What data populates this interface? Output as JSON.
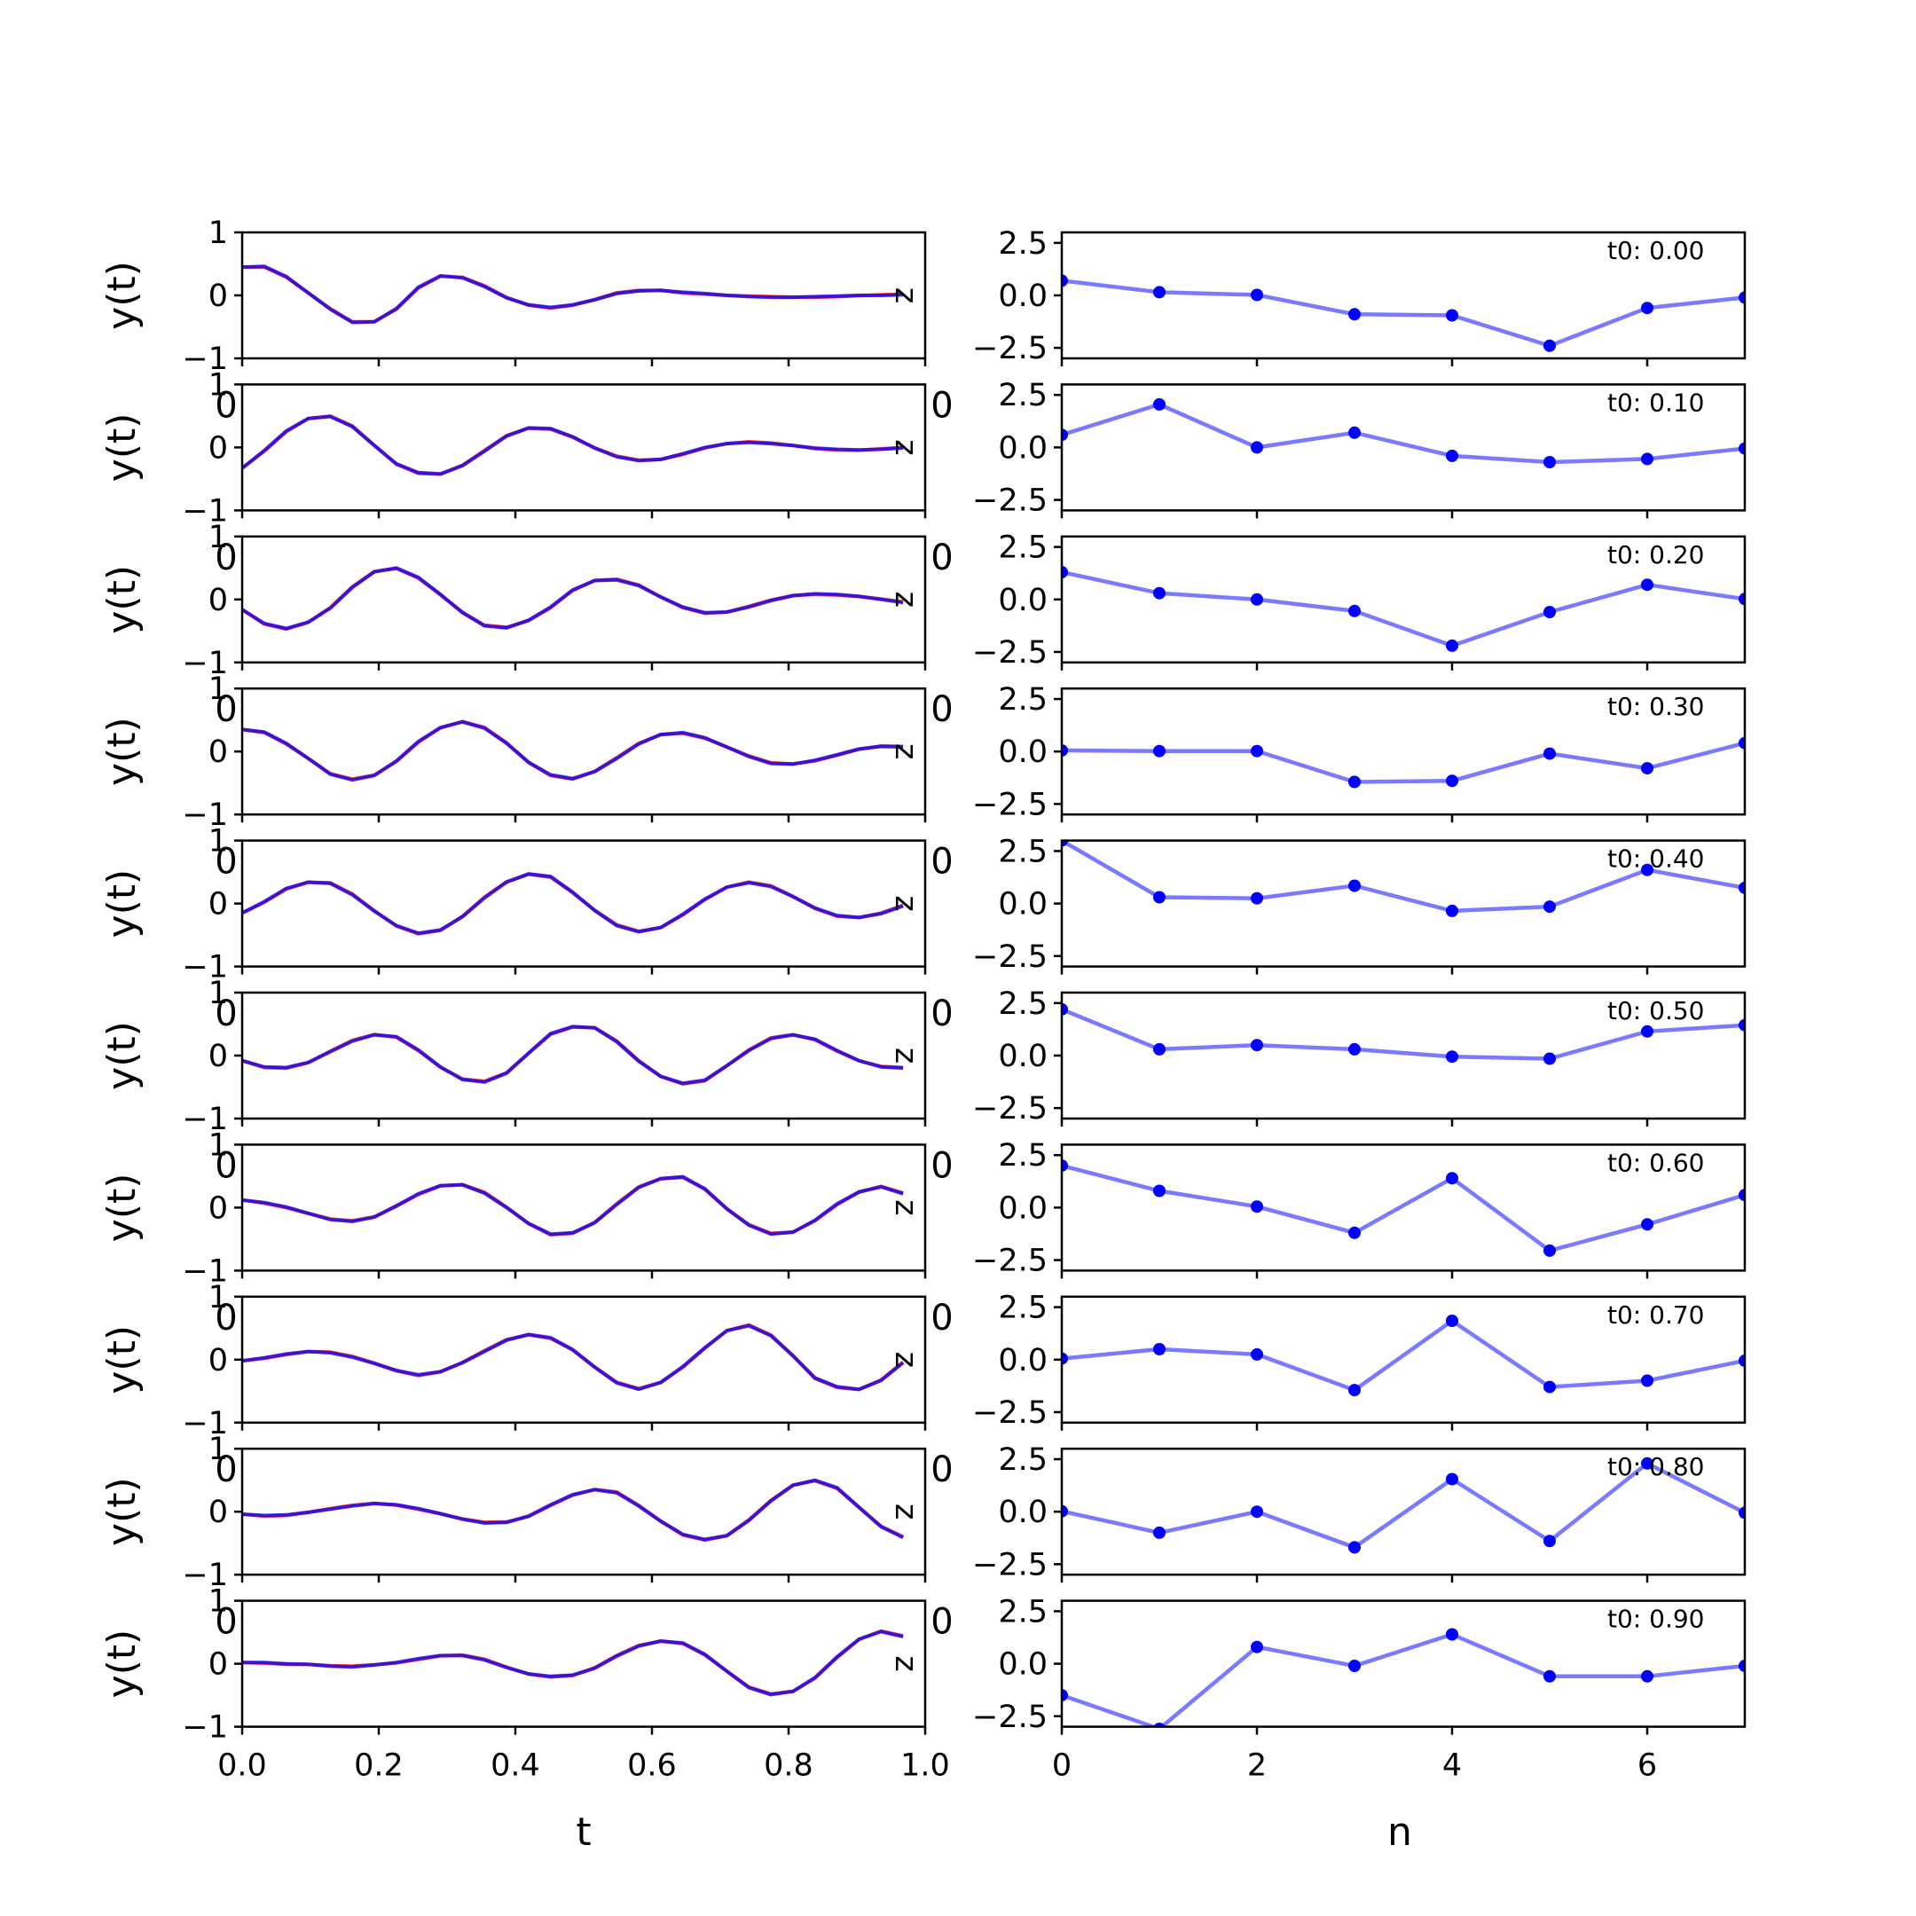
{
  "chart_data": [
    {
      "type": "line",
      "panel": "left",
      "xlabel": "t",
      "ylabel": "y(t)",
      "xlim": [
        0.0,
        1.0
      ],
      "ylim": [
        -1,
        1
      ],
      "yticks": [
        -1,
        0,
        1
      ],
      "xticks": [
        0.0,
        0.2,
        0.4,
        0.6,
        0.8,
        1.0
      ],
      "xtick_labels": [
        "0.0",
        "0.2",
        "0.4",
        "0.6",
        "0.8",
        "1.0"
      ],
      "right_axis_marker": "z",
      "stray_label": "0",
      "colors": {
        "red": "#ff0000",
        "blue": "#0000ff"
      },
      "x": [
        0.0,
        0.0323,
        0.0645,
        0.0968,
        0.129,
        0.1613,
        0.1935,
        0.2258,
        0.2581,
        0.2903,
        0.3226,
        0.3548,
        0.3871,
        0.4194,
        0.4516,
        0.4839,
        0.5161,
        0.5484,
        0.5806,
        0.6129,
        0.6452,
        0.6774,
        0.7097,
        0.7419,
        0.7742,
        0.8065,
        0.8387,
        0.871,
        0.9032,
        0.9355,
        0.9677
      ],
      "rows": [
        {
          "values": [
            0.45,
            0.46,
            0.3,
            0.04,
            -0.22,
            -0.43,
            -0.42,
            -0.21,
            0.13,
            0.31,
            0.28,
            0.14,
            -0.04,
            -0.15,
            -0.19,
            -0.15,
            -0.07,
            0.03,
            0.07,
            0.08,
            0.05,
            0.03,
            0.0,
            -0.02,
            -0.03,
            -0.03,
            -0.02,
            -0.01,
            0.0,
            0.0,
            0.01
          ]
        },
        {
          "values": [
            -0.33,
            -0.05,
            0.26,
            0.46,
            0.49,
            0.33,
            0.03,
            -0.26,
            -0.4,
            -0.42,
            -0.29,
            -0.06,
            0.18,
            0.31,
            0.3,
            0.17,
            -0.01,
            -0.15,
            -0.21,
            -0.19,
            -0.1,
            0.0,
            0.06,
            0.08,
            0.06,
            0.03,
            -0.01,
            -0.03,
            -0.04,
            -0.03,
            -0.01
          ]
        },
        {
          "values": [
            -0.16,
            -0.38,
            -0.46,
            -0.36,
            -0.14,
            0.19,
            0.44,
            0.5,
            0.35,
            0.08,
            -0.21,
            -0.42,
            -0.45,
            -0.33,
            -0.12,
            0.15,
            0.3,
            0.31,
            0.22,
            0.04,
            -0.12,
            -0.21,
            -0.2,
            -0.12,
            -0.02,
            0.06,
            0.09,
            0.08,
            0.05,
            0.0,
            -0.05
          ]
        },
        {
          "values": [
            0.35,
            0.31,
            0.13,
            -0.11,
            -0.36,
            -0.45,
            -0.38,
            -0.15,
            0.16,
            0.38,
            0.47,
            0.37,
            0.13,
            -0.17,
            -0.37,
            -0.43,
            -0.32,
            -0.11,
            0.12,
            0.27,
            0.3,
            0.22,
            0.07,
            -0.08,
            -0.19,
            -0.2,
            -0.14,
            -0.05,
            0.04,
            0.08,
            0.07
          ]
        },
        {
          "values": [
            -0.15,
            0.03,
            0.24,
            0.34,
            0.32,
            0.14,
            -0.12,
            -0.35,
            -0.47,
            -0.42,
            -0.21,
            0.09,
            0.34,
            0.47,
            0.43,
            0.18,
            -0.11,
            -0.35,
            -0.45,
            -0.38,
            -0.17,
            0.07,
            0.26,
            0.33,
            0.27,
            0.11,
            -0.07,
            -0.19,
            -0.22,
            -0.16,
            -0.04
          ]
        },
        {
          "values": [
            -0.08,
            -0.18,
            -0.19,
            -0.11,
            0.06,
            0.23,
            0.33,
            0.3,
            0.09,
            -0.18,
            -0.38,
            -0.42,
            -0.28,
            0.04,
            0.35,
            0.46,
            0.44,
            0.22,
            -0.09,
            -0.33,
            -0.44,
            -0.39,
            -0.16,
            0.08,
            0.27,
            0.33,
            0.26,
            0.08,
            -0.08,
            -0.18,
            -0.2
          ]
        },
        {
          "values": [
            0.12,
            0.08,
            0.01,
            -0.09,
            -0.19,
            -0.22,
            -0.15,
            0.03,
            0.22,
            0.35,
            0.36,
            0.23,
            0.0,
            -0.25,
            -0.42,
            -0.4,
            -0.24,
            0.05,
            0.32,
            0.46,
            0.49,
            0.3,
            -0.02,
            -0.28,
            -0.42,
            -0.39,
            -0.2,
            0.06,
            0.25,
            0.33,
            0.22
          ]
        },
        {
          "values": [
            -0.02,
            0.03,
            0.09,
            0.13,
            0.11,
            0.04,
            -0.06,
            -0.17,
            -0.24,
            -0.19,
            -0.05,
            0.13,
            0.31,
            0.4,
            0.35,
            0.16,
            -0.12,
            -0.37,
            -0.47,
            -0.36,
            -0.11,
            0.19,
            0.46,
            0.54,
            0.38,
            0.06,
            -0.29,
            -0.43,
            -0.47,
            -0.33,
            -0.05
          ]
        },
        {
          "values": [
            -0.04,
            -0.06,
            -0.05,
            -0.01,
            0.04,
            0.09,
            0.13,
            0.11,
            0.05,
            -0.03,
            -0.12,
            -0.18,
            -0.17,
            -0.07,
            0.11,
            0.27,
            0.35,
            0.3,
            0.09,
            -0.15,
            -0.36,
            -0.44,
            -0.38,
            -0.14,
            0.17,
            0.42,
            0.5,
            0.38,
            0.07,
            -0.24,
            -0.41
          ]
        },
        {
          "values": [
            0.02,
            0.02,
            0.0,
            -0.01,
            -0.04,
            -0.05,
            -0.02,
            0.02,
            0.08,
            0.13,
            0.13,
            0.06,
            -0.06,
            -0.16,
            -0.2,
            -0.18,
            -0.07,
            0.12,
            0.28,
            0.36,
            0.33,
            0.15,
            -0.12,
            -0.38,
            -0.49,
            -0.44,
            -0.22,
            0.11,
            0.39,
            0.51,
            0.43
          ]
        }
      ]
    },
    {
      "type": "line",
      "panel": "right",
      "xlabel": "n",
      "xlim": [
        0,
        7
      ],
      "ylim": [
        -3,
        3
      ],
      "yticks": [
        -2.5,
        0.0,
        2.5
      ],
      "ytick_labels": [
        "−2.5",
        "0.0",
        "2.5"
      ],
      "xticks": [
        0,
        2,
        4,
        6
      ],
      "xtick_labels": [
        "0",
        "2",
        "4",
        "6"
      ],
      "stray_label": "0",
      "colors": {
        "line": "#7a7aff",
        "marker": "#0000ff"
      },
      "x": [
        0,
        1,
        2,
        3,
        4,
        5,
        6,
        7
      ],
      "rows": [
        {
          "annotation": "t0: 0.00",
          "values": [
            0.7,
            0.15,
            0.02,
            -0.9,
            -0.95,
            -2.4,
            -0.6,
            -0.1
          ]
        },
        {
          "annotation": "t0: 0.10",
          "values": [
            0.6,
            2.05,
            0.0,
            0.7,
            -0.4,
            -0.7,
            -0.55,
            -0.05
          ]
        },
        {
          "annotation": "t0: 0.20",
          "values": [
            1.3,
            0.3,
            0.0,
            -0.55,
            -2.2,
            -0.6,
            0.7,
            0.02
          ]
        },
        {
          "annotation": "t0: 0.30",
          "values": [
            0.05,
            0.02,
            0.02,
            -1.45,
            -1.4,
            -0.1,
            -0.8,
            0.4
          ]
        },
        {
          "annotation": "t0: 0.40",
          "values": [
            3.0,
            0.3,
            0.25,
            0.85,
            -0.35,
            -0.15,
            1.6,
            0.75
          ]
        },
        {
          "annotation": "t0: 0.50",
          "values": [
            2.2,
            0.3,
            0.5,
            0.3,
            -0.05,
            -0.15,
            1.15,
            1.45
          ]
        },
        {
          "annotation": "t0: 0.60",
          "values": [
            2.0,
            0.8,
            0.05,
            -1.2,
            1.4,
            -2.05,
            -0.8,
            0.6
          ]
        },
        {
          "annotation": "t0: 0.70",
          "values": [
            0.05,
            0.5,
            0.25,
            -1.45,
            1.85,
            -1.3,
            -1.0,
            -0.05
          ]
        },
        {
          "annotation": "t0: 0.80",
          "values": [
            0.02,
            -1.0,
            0.0,
            -1.7,
            1.55,
            -1.4,
            2.3,
            -0.05
          ]
        },
        {
          "annotation": "t0: 0.90",
          "values": [
            -1.5,
            -3.1,
            0.8,
            -0.1,
            1.4,
            -0.6,
            -0.6,
            -0.1
          ]
        }
      ]
    }
  ]
}
